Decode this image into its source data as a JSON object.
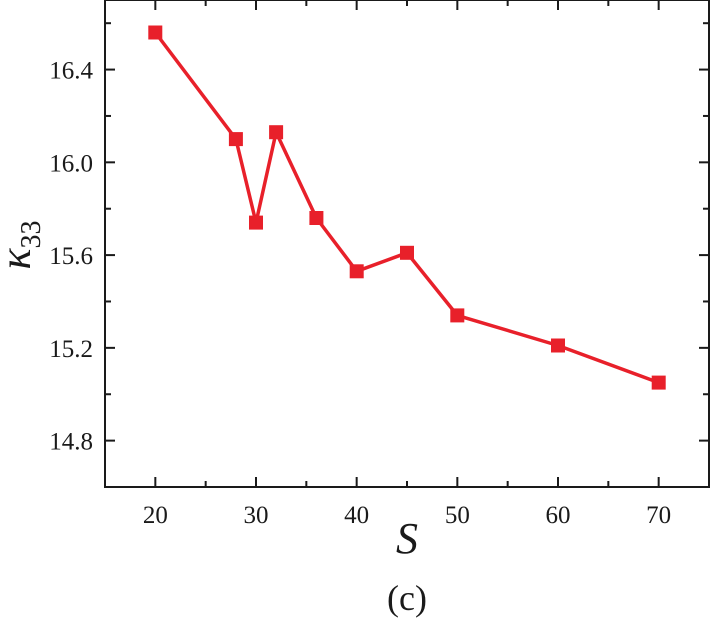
{
  "chart_data": {
    "type": "line",
    "title": "",
    "caption": "(c)",
    "xlabel": "S",
    "ylabel_symbol": "κ",
    "ylabel_subscript": "33",
    "xlim": [
      15,
      75
    ],
    "ylim": [
      14.6,
      16.7
    ],
    "xticks": [
      20,
      30,
      40,
      50,
      60,
      70
    ],
    "yticks": [
      14.8,
      15.2,
      15.6,
      16.0,
      16.4
    ],
    "ytick_labels": [
      "14.8",
      "15.2",
      "15.6",
      "16.0",
      "16.4"
    ],
    "grid": false,
    "legend": "none",
    "series": [
      {
        "color": "#e8202a",
        "marker": "square",
        "x": [
          20,
          28,
          30,
          32,
          36,
          40,
          45,
          50,
          60,
          70
        ],
        "y": [
          16.56,
          16.1,
          15.74,
          16.13,
          15.76,
          15.53,
          15.61,
          15.34,
          15.21,
          15.05
        ]
      }
    ]
  }
}
